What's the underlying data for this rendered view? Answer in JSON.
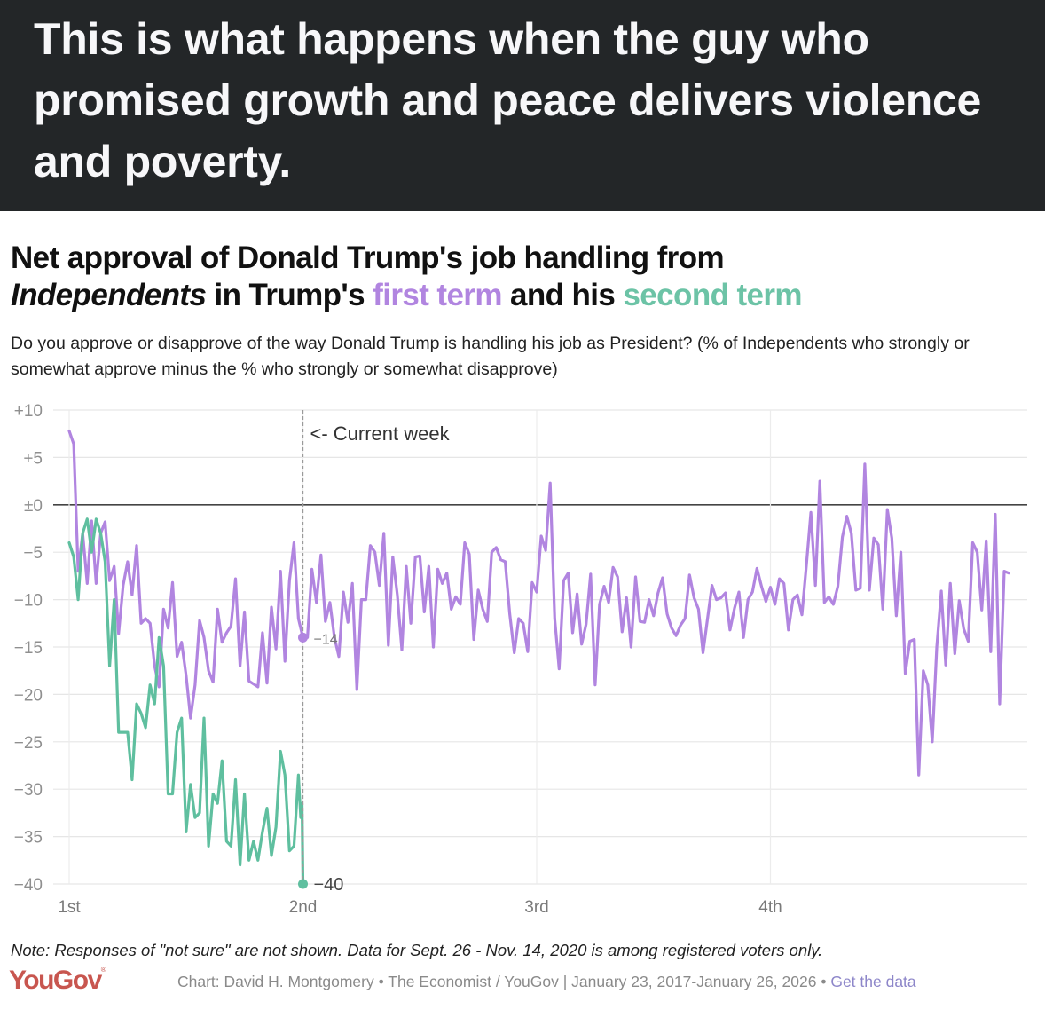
{
  "banner": {
    "text": "This is what happens when the guy who promised growth and peace delivers violence and poverty."
  },
  "header": {
    "title_part1": "Net approval of Donald Trump's job handling from",
    "title_italic": "Independents",
    "title_part2": " in Trump's ",
    "title_first_term": "first term",
    "title_part3": " and his ",
    "title_second_term": "second term",
    "subtitle": "Do you approve or disapprove of the way Donald Trump is handling his job as President? (% of Independents who strongly or somewhat approve minus the % who strongly or somewhat disapprove)"
  },
  "colors": {
    "first_term": "#b185e0",
    "second_term": "#5fbf9f",
    "banner_bg": "#232628",
    "logo": "#c8564f",
    "link": "#8d86c9"
  },
  "chart_data": {
    "type": "line",
    "title": "Net approval of Donald Trump's job handling from Independents in Trump's first term and his second term",
    "xlabel": "",
    "ylabel": "",
    "ylim": [
      -40,
      10
    ],
    "xlim": [
      0,
      209
    ],
    "x_unit": "weeks since start of term",
    "y_ticks": [
      "+10",
      "+5",
      "±0",
      "−5",
      "−10",
      "−15",
      "−20",
      "−25",
      "−30",
      "−35",
      "−40"
    ],
    "y_tick_values": [
      10,
      5,
      0,
      -5,
      -10,
      -15,
      -20,
      -25,
      -30,
      -35,
      -40
    ],
    "x_ticks": [
      "1st",
      "2nd",
      "3rd",
      "4th"
    ],
    "x_tick_values": [
      0,
      52,
      104,
      156
    ],
    "grid": true,
    "current_week": {
      "x": 52,
      "label": "<- Current week"
    },
    "series": [
      {
        "name": "first term",
        "end_label": "−14",
        "end_value": -14,
        "points": [
          [
            0,
            7.8
          ],
          [
            1,
            6.4
          ],
          [
            2,
            -7
          ],
          [
            3,
            -3
          ],
          [
            4,
            -8.3
          ],
          [
            5,
            -1.7
          ],
          [
            6,
            -8.3
          ],
          [
            7,
            -3
          ],
          [
            8,
            -1.8
          ],
          [
            9,
            -8
          ],
          [
            10,
            -6.5
          ],
          [
            11,
            -13.6
          ],
          [
            12,
            -8.5
          ],
          [
            13,
            -6
          ],
          [
            14,
            -9.5
          ],
          [
            15,
            -4.3
          ],
          [
            16,
            -12.5
          ],
          [
            17,
            -12
          ],
          [
            18,
            -12.5
          ],
          [
            19,
            -17
          ],
          [
            20,
            -19.2
          ],
          [
            21,
            -11
          ],
          [
            22,
            -13
          ],
          [
            23,
            -8.2
          ],
          [
            24,
            -16
          ],
          [
            25,
            -14.5
          ],
          [
            26,
            -18
          ],
          [
            27,
            -22.5
          ],
          [
            28,
            -19
          ],
          [
            29,
            -12.2
          ],
          [
            30,
            -14
          ],
          [
            31,
            -17.5
          ],
          [
            32,
            -18.7
          ],
          [
            33,
            -11
          ],
          [
            34,
            -14.5
          ],
          [
            35,
            -13.5
          ],
          [
            36,
            -12.8
          ],
          [
            37,
            -7.8
          ],
          [
            38,
            -17
          ],
          [
            39,
            -11.3
          ],
          [
            40,
            -18.6
          ],
          [
            41,
            -18.9
          ],
          [
            42,
            -19.2
          ],
          [
            43,
            -13.5
          ],
          [
            44,
            -18.8
          ],
          [
            45,
            -10.8
          ],
          [
            46,
            -15.2
          ],
          [
            47,
            -7
          ],
          [
            48,
            -16.5
          ],
          [
            49,
            -8
          ],
          [
            50,
            -4
          ],
          [
            51,
            -12
          ],
          [
            52,
            -14
          ],
          [
            53,
            -14
          ],
          [
            54,
            -6.8
          ],
          [
            55,
            -10.3
          ],
          [
            56,
            -5.3
          ],
          [
            57,
            -12.3
          ],
          [
            58,
            -10.3
          ],
          [
            59,
            -14
          ],
          [
            60,
            -16
          ],
          [
            61,
            -9.2
          ],
          [
            62,
            -12.4
          ],
          [
            63,
            -8.3
          ],
          [
            64,
            -19.5
          ],
          [
            65,
            -10
          ],
          [
            66,
            -10
          ],
          [
            67,
            -4.3
          ],
          [
            68,
            -5
          ],
          [
            69,
            -8.5
          ],
          [
            70,
            -3
          ],
          [
            71,
            -14.8
          ],
          [
            72,
            -5.5
          ],
          [
            73,
            -9.5
          ],
          [
            74,
            -15.3
          ],
          [
            75,
            -6.5
          ],
          [
            76,
            -12.5
          ],
          [
            77,
            -5.5
          ],
          [
            78,
            -5.4
          ],
          [
            79,
            -11.3
          ],
          [
            80,
            -6.5
          ],
          [
            81,
            -15
          ],
          [
            82,
            -6.8
          ],
          [
            83,
            -8.3
          ],
          [
            84,
            -7.2
          ],
          [
            85,
            -11
          ],
          [
            86,
            -9.7
          ],
          [
            87,
            -10.5
          ],
          [
            88,
            -4
          ],
          [
            89,
            -5.2
          ],
          [
            90,
            -14.2
          ],
          [
            91,
            -9
          ],
          [
            92,
            -11
          ],
          [
            93,
            -12.3
          ],
          [
            94,
            -5
          ],
          [
            95,
            -4.5
          ],
          [
            96,
            -5.8
          ],
          [
            97,
            -6
          ],
          [
            98,
            -11.5
          ],
          [
            99,
            -15.6
          ],
          [
            100,
            -12
          ],
          [
            101,
            -12.5
          ],
          [
            102,
            -15.5
          ],
          [
            103,
            -8.2
          ],
          [
            104,
            -9.2
          ],
          [
            105,
            -3.3
          ],
          [
            106,
            -4.8
          ],
          [
            107,
            2.3
          ],
          [
            108,
            -12
          ],
          [
            109,
            -17.3
          ],
          [
            110,
            -8
          ],
          [
            111,
            -7.2
          ],
          [
            112,
            -13.5
          ],
          [
            113,
            -9.4
          ],
          [
            114,
            -14.7
          ],
          [
            115,
            -12.6
          ],
          [
            116,
            -7.3
          ],
          [
            117,
            -19
          ],
          [
            118,
            -10.5
          ],
          [
            119,
            -8.6
          ],
          [
            120,
            -10.3
          ],
          [
            121,
            -6.6
          ],
          [
            122,
            -7.6
          ],
          [
            123,
            -13.4
          ],
          [
            124,
            -9.8
          ],
          [
            125,
            -15
          ],
          [
            126,
            -7.6
          ],
          [
            127,
            -12.3
          ],
          [
            128,
            -12.4
          ],
          [
            129,
            -10
          ],
          [
            130,
            -11.7
          ],
          [
            131,
            -9.3
          ],
          [
            132,
            -7.7
          ],
          [
            133,
            -11.5
          ],
          [
            134,
            -13
          ],
          [
            135,
            -13.8
          ],
          [
            136,
            -12.7
          ],
          [
            137,
            -12
          ],
          [
            138,
            -7.4
          ],
          [
            139,
            -9.8
          ],
          [
            140,
            -11
          ],
          [
            141,
            -15.6
          ],
          [
            142,
            -12
          ],
          [
            143,
            -8.5
          ],
          [
            144,
            -10
          ],
          [
            145,
            -9.8
          ],
          [
            146,
            -9.3
          ],
          [
            147,
            -13.2
          ],
          [
            148,
            -10.9
          ],
          [
            149,
            -9.2
          ],
          [
            150,
            -14
          ],
          [
            151,
            -10
          ],
          [
            152,
            -9.2
          ],
          [
            153,
            -6.7
          ],
          [
            154,
            -8.6
          ],
          [
            155,
            -10.2
          ],
          [
            156,
            -8.7
          ],
          [
            157,
            -10.5
          ],
          [
            158,
            -7.8
          ],
          [
            159,
            -8.3
          ],
          [
            160,
            -13.2
          ],
          [
            161,
            -10
          ],
          [
            162,
            -9.5
          ],
          [
            163,
            -11.6
          ],
          [
            164,
            -6.4
          ],
          [
            165,
            -0.8
          ],
          [
            166,
            -8.5
          ],
          [
            167,
            2.5
          ],
          [
            168,
            -10.3
          ],
          [
            169,
            -9.7
          ],
          [
            170,
            -10.5
          ],
          [
            171,
            -8.6
          ],
          [
            172,
            -3.4
          ],
          [
            173,
            -1.2
          ],
          [
            174,
            -3
          ],
          [
            175,
            -9
          ],
          [
            176,
            -8.8
          ],
          [
            177,
            4.3
          ],
          [
            178,
            -9
          ],
          [
            179,
            -3.5
          ],
          [
            180,
            -4.2
          ],
          [
            181,
            -11
          ],
          [
            182,
            -0.5
          ],
          [
            183,
            -3.5
          ],
          [
            184,
            -11.7
          ],
          [
            185,
            -5
          ],
          [
            186,
            -17.8
          ],
          [
            187,
            -14.4
          ],
          [
            188,
            -14.2
          ],
          [
            189,
            -28.5
          ],
          [
            190,
            -17.5
          ],
          [
            191,
            -19
          ],
          [
            192,
            -25
          ],
          [
            193,
            -15
          ],
          [
            194,
            -9.1
          ],
          [
            195,
            -16.9
          ],
          [
            196,
            -8.3
          ],
          [
            197,
            -15.7
          ],
          [
            198,
            -10.1
          ],
          [
            199,
            -13.1
          ],
          [
            200,
            -14.4
          ],
          [
            201,
            -4
          ],
          [
            202,
            -5
          ],
          [
            203,
            -11.1
          ],
          [
            204,
            -3.8
          ],
          [
            205,
            -15.5
          ],
          [
            206,
            -1
          ],
          [
            207,
            -21
          ],
          [
            208,
            -7
          ],
          [
            209,
            -7.2
          ]
        ]
      },
      {
        "name": "second term",
        "end_label": "−40",
        "end_value": -40,
        "points": [
          [
            0,
            -4
          ],
          [
            1,
            -5.5
          ],
          [
            2,
            -10
          ],
          [
            3,
            -3
          ],
          [
            4,
            -1.5
          ],
          [
            5,
            -5
          ],
          [
            6,
            -1.5
          ],
          [
            7,
            -3
          ],
          [
            8,
            -6
          ],
          [
            9,
            -17
          ],
          [
            10,
            -10
          ],
          [
            11,
            -24
          ],
          [
            12,
            -24
          ],
          [
            13,
            -24
          ],
          [
            14,
            -29
          ],
          [
            15,
            -21
          ],
          [
            16,
            -22
          ],
          [
            17,
            -23.5
          ],
          [
            18,
            -19
          ],
          [
            19,
            -21
          ],
          [
            20,
            -14
          ],
          [
            21,
            -17
          ],
          [
            22,
            -30.5
          ],
          [
            23,
            -30.5
          ],
          [
            24,
            -24
          ],
          [
            25,
            -22.5
          ],
          [
            26,
            -34.5
          ],
          [
            27,
            -29.5
          ],
          [
            28,
            -33
          ],
          [
            29,
            -32.5
          ],
          [
            30,
            -22.5
          ],
          [
            31,
            -36
          ],
          [
            32,
            -30.5
          ],
          [
            33,
            -31.5
          ],
          [
            34,
            -27
          ],
          [
            35,
            -35.5
          ],
          [
            36,
            -36
          ],
          [
            37,
            -29
          ],
          [
            38,
            -38
          ],
          [
            39,
            -30.5
          ],
          [
            40,
            -37.5
          ],
          [
            41,
            -35.5
          ],
          [
            42,
            -37.5
          ],
          [
            43,
            -34.5
          ],
          [
            44,
            -32
          ],
          [
            45,
            -37
          ],
          [
            46,
            -34
          ],
          [
            47,
            -26
          ],
          [
            48,
            -28.5
          ],
          [
            49,
            -36.5
          ],
          [
            50,
            -36
          ],
          [
            51,
            -28.5
          ],
          [
            51.5,
            -33
          ],
          [
            51.8,
            -31.5
          ],
          [
            52,
            -40
          ]
        ]
      }
    ]
  },
  "footer": {
    "note": "Note: Responses of \"not sure\" are not shown. Data for Sept. 26 - Nov. 14, 2020 is among registered voters only.",
    "logo_text": "YouGov",
    "logo_mark": "®",
    "credit": "Chart: David H. Montgomery • The Economist / YouGov | January 23, 2017-January 26, 2026 • ",
    "link": "Get the data"
  }
}
